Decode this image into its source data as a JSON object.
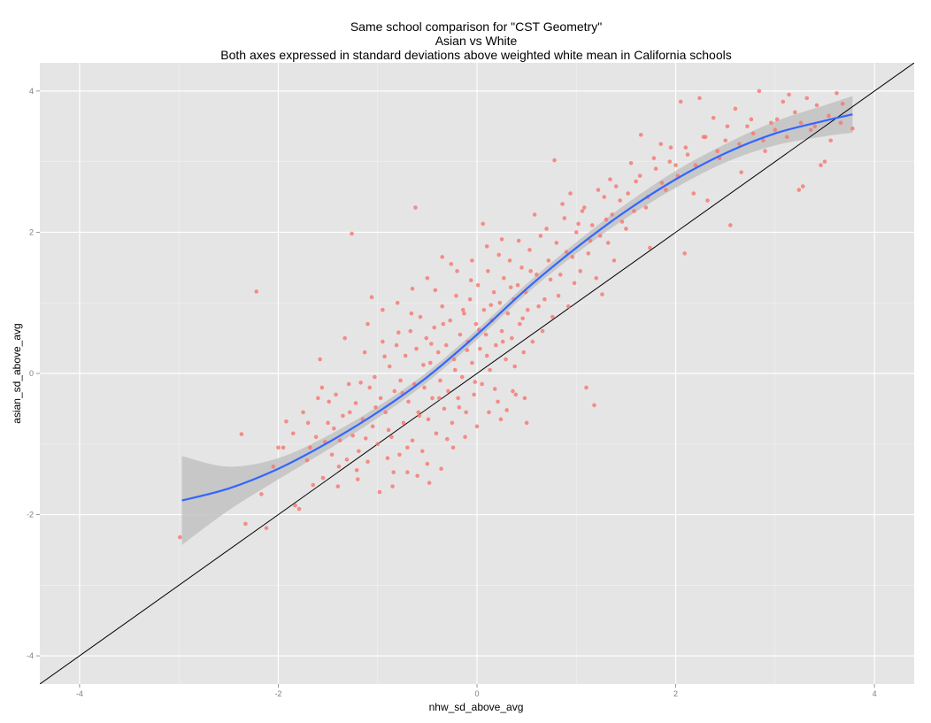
{
  "chart_data": {
    "type": "scatter",
    "title": "Same school comparison for \"CST Geometry\"",
    "subtitle": "Asian vs White",
    "subtitle2": "Both axes expressed in standard deviations above weighted white mean in California schools",
    "xlabel": "nhw_sd_above_avg",
    "ylabel": "asian_sd_above_avg",
    "xlim": [
      -4.4,
      4.4
    ],
    "ylim": [
      -4.4,
      4.4
    ],
    "x_ticks": [
      "-4",
      "-2",
      "0",
      "2",
      "4"
    ],
    "y_ticks": [
      "4",
      "2",
      "0",
      "-2",
      "-4"
    ],
    "grid": true,
    "background": "#e5e5e5",
    "point_color": "#f8766d",
    "smooth_color": "#3366ff",
    "ribbon_color": "#c2c2c2",
    "reference_line": {
      "slope": 1,
      "intercept": 0,
      "color": "#000000"
    },
    "smooth_curve": [
      [
        -2.97,
        -1.8
      ],
      [
        -2.5,
        -1.63
      ],
      [
        -2.0,
        -1.35
      ],
      [
        -1.5,
        -0.98
      ],
      [
        -1.0,
        -0.55
      ],
      [
        -0.5,
        -0.05
      ],
      [
        0.0,
        0.55
      ],
      [
        0.5,
        1.2
      ],
      [
        1.0,
        1.78
      ],
      [
        1.5,
        2.3
      ],
      [
        2.0,
        2.75
      ],
      [
        2.5,
        3.12
      ],
      [
        3.0,
        3.4
      ],
      [
        3.5,
        3.58
      ],
      [
        3.78,
        3.67
      ]
    ],
    "ribbon_upper": [
      [
        -2.97,
        -1.17
      ],
      [
        -2.5,
        -1.32
      ],
      [
        -2.0,
        -1.2
      ],
      [
        -1.5,
        -0.88
      ],
      [
        -1.0,
        -0.47
      ],
      [
        -0.5,
        0.02
      ],
      [
        0.0,
        0.62
      ],
      [
        0.5,
        1.27
      ],
      [
        1.0,
        1.86
      ],
      [
        1.5,
        2.4
      ],
      [
        2.0,
        2.87
      ],
      [
        2.5,
        3.25
      ],
      [
        3.0,
        3.57
      ],
      [
        3.5,
        3.8
      ],
      [
        3.78,
        3.93
      ]
    ],
    "ribbon_lower": [
      [
        -2.97,
        -2.43
      ],
      [
        -2.5,
        -1.94
      ],
      [
        -2.0,
        -1.5
      ],
      [
        -1.5,
        -1.08
      ],
      [
        -1.0,
        -0.63
      ],
      [
        -0.5,
        -0.12
      ],
      [
        0.0,
        0.48
      ],
      [
        0.5,
        1.13
      ],
      [
        1.0,
        1.7
      ],
      [
        1.5,
        2.2
      ],
      [
        2.0,
        2.63
      ],
      [
        2.5,
        2.99
      ],
      [
        3.0,
        3.23
      ],
      [
        3.5,
        3.36
      ],
      [
        3.78,
        3.41
      ]
    ],
    "points": [
      [
        -2.99,
        -2.32
      ],
      [
        -2.37,
        -0.86
      ],
      [
        -2.33,
        -2.13
      ],
      [
        -2.22,
        1.16
      ],
      [
        -2.17,
        -1.71
      ],
      [
        -2.12,
        -2.19
      ],
      [
        -2.0,
        -1.05
      ],
      [
        -1.92,
        -0.68
      ],
      [
        -1.83,
        -1.87
      ],
      [
        -1.79,
        -1.92
      ],
      [
        -1.71,
        -1.23
      ],
      [
        -1.65,
        -1.58
      ],
      [
        -1.58,
        0.2
      ],
      [
        -1.53,
        -0.97
      ],
      [
        -1.49,
        -0.4
      ],
      [
        -1.44,
        -0.78
      ],
      [
        -1.39,
        -1.32
      ],
      [
        -1.33,
        0.5
      ],
      [
        -1.28,
        -0.55
      ],
      [
        -1.26,
        1.98
      ],
      [
        -1.21,
        -1.37
      ],
      [
        -1.17,
        -0.13
      ],
      [
        -1.12,
        -0.92
      ],
      [
        -1.06,
        1.08
      ],
      [
        -1.02,
        -0.48
      ],
      [
        -0.98,
        -1.68
      ],
      [
        -0.93,
        0.24
      ],
      [
        -0.89,
        -0.8
      ],
      [
        -0.84,
        -1.4
      ],
      [
        -0.79,
        0.58
      ],
      [
        -0.75,
        -0.28
      ],
      [
        -0.7,
        -1.05
      ],
      [
        -0.66,
        0.85
      ],
      [
        -0.62,
        2.35
      ],
      [
        -0.58,
        -0.6
      ],
      [
        -0.54,
        0.12
      ],
      [
        -0.5,
        -1.28
      ],
      [
        -0.46,
        0.42
      ],
      [
        -0.42,
        1.18
      ],
      [
        -0.38,
        -0.35
      ],
      [
        -0.34,
        0.7
      ],
      [
        -0.3,
        -0.93
      ],
      [
        -0.26,
        1.55
      ],
      [
        -0.22,
        0.05
      ],
      [
        -0.18,
        -0.48
      ],
      [
        -0.14,
        0.9
      ],
      [
        -0.1,
        0.33
      ],
      [
        -0.06,
        1.32
      ],
      [
        -0.02,
        -0.12
      ],
      [
        0.02,
        0.62
      ],
      [
        0.06,
        2.12
      ],
      [
        0.1,
        0.25
      ],
      [
        0.14,
        0.97
      ],
      [
        0.18,
        -0.22
      ],
      [
        0.22,
        1.68
      ],
      [
        0.26,
        0.45
      ],
      [
        0.3,
        -0.52
      ],
      [
        0.34,
        1.22
      ],
      [
        0.38,
        0.1
      ],
      [
        0.42,
        1.88
      ],
      [
        0.46,
        0.78
      ],
      [
        0.5,
        -0.7
      ],
      [
        0.54,
        1.45
      ],
      [
        0.58,
        2.25
      ],
      [
        0.62,
        0.95
      ],
      [
        0.66,
        0.6
      ],
      [
        0.7,
        2.05
      ],
      [
        0.74,
        1.33
      ],
      [
        0.78,
        3.02
      ],
      [
        0.82,
        1.1
      ],
      [
        0.86,
        2.4
      ],
      [
        0.9,
        1.72
      ],
      [
        0.94,
        2.55
      ],
      [
        0.98,
        1.28
      ],
      [
        1.02,
        2.12
      ],
      [
        1.06,
        2.3
      ],
      [
        1.1,
        -0.2
      ],
      [
        1.14,
        1.88
      ],
      [
        1.18,
        -0.45
      ],
      [
        1.22,
        2.6
      ],
      [
        1.26,
        1.12
      ],
      [
        1.3,
        2.18
      ],
      [
        1.34,
        2.75
      ],
      [
        1.38,
        1.6
      ],
      [
        1.44,
        2.45
      ],
      [
        1.5,
        2.05
      ],
      [
        1.55,
        2.98
      ],
      [
        1.6,
        2.72
      ],
      [
        1.65,
        3.38
      ],
      [
        1.7,
        2.35
      ],
      [
        1.74,
        1.78
      ],
      [
        1.8,
        2.9
      ],
      [
        1.85,
        3.25
      ],
      [
        1.9,
        2.6
      ],
      [
        1.95,
        3.2
      ],
      [
        2.0,
        2.95
      ],
      [
        2.05,
        3.85
      ],
      [
        2.09,
        1.7
      ],
      [
        2.12,
        3.1
      ],
      [
        2.18,
        2.55
      ],
      [
        2.24,
        3.9
      ],
      [
        2.28,
        3.35
      ],
      [
        2.32,
        2.45
      ],
      [
        2.38,
        3.62
      ],
      [
        2.44,
        3.05
      ],
      [
        2.5,
        3.3
      ],
      [
        2.55,
        2.1
      ],
      [
        2.6,
        3.75
      ],
      [
        2.66,
        2.85
      ],
      [
        2.72,
        3.5
      ],
      [
        2.78,
        3.4
      ],
      [
        2.84,
        4.0
      ],
      [
        2.9,
        3.15
      ],
      [
        2.96,
        3.55
      ],
      [
        3.02,
        3.6
      ],
      [
        3.08,
        3.85
      ],
      [
        3.14,
        3.95
      ],
      [
        3.2,
        3.7
      ],
      [
        3.24,
        2.6
      ],
      [
        3.28,
        2.65
      ],
      [
        3.32,
        3.9
      ],
      [
        3.36,
        3.45
      ],
      [
        3.42,
        3.8
      ],
      [
        3.46,
        2.95
      ],
      [
        3.5,
        3.0
      ],
      [
        3.56,
        3.3
      ],
      [
        3.62,
        3.97
      ],
      [
        3.68,
        3.82
      ],
      [
        3.78,
        3.47
      ],
      [
        -1.75,
        -0.55
      ],
      [
        -1.68,
        -1.05
      ],
      [
        -1.6,
        -0.35
      ],
      [
        -1.55,
        -1.48
      ],
      [
        -1.5,
        -0.7
      ],
      [
        -1.46,
        -1.15
      ],
      [
        -1.42,
        -0.3
      ],
      [
        -1.38,
        -0.95
      ],
      [
        -1.35,
        -0.6
      ],
      [
        -1.31,
        -1.22
      ],
      [
        -1.29,
        -0.15
      ],
      [
        -1.25,
        -0.88
      ],
      [
        -1.22,
        -0.42
      ],
      [
        -1.19,
        -1.1
      ],
      [
        -1.15,
        -0.65
      ],
      [
        -1.13,
        0.3
      ],
      [
        -1.1,
        -1.25
      ],
      [
        -1.08,
        -0.2
      ],
      [
        -1.05,
        -0.75
      ],
      [
        -1.03,
        -0.05
      ],
      [
        -1.0,
        -1.0
      ],
      [
        -0.97,
        -0.35
      ],
      [
        -0.95,
        0.45
      ],
      [
        -0.92,
        -0.55
      ],
      [
        -0.9,
        -1.2
      ],
      [
        -0.88,
        0.1
      ],
      [
        -0.86,
        -0.9
      ],
      [
        -0.83,
        -0.25
      ],
      [
        -0.81,
        0.4
      ],
      [
        -0.78,
        -1.15
      ],
      [
        -0.77,
        -0.1
      ],
      [
        -0.74,
        -0.7
      ],
      [
        -0.72,
        0.25
      ],
      [
        -0.69,
        -0.4
      ],
      [
        -0.67,
        0.6
      ],
      [
        -0.65,
        -0.95
      ],
      [
        -0.63,
        -0.15
      ],
      [
        -0.61,
        0.35
      ],
      [
        -0.59,
        -0.55
      ],
      [
        -0.57,
        0.8
      ],
      [
        -0.55,
        -1.1
      ],
      [
        -0.53,
        -0.2
      ],
      [
        -0.51,
        0.5
      ],
      [
        -0.49,
        -0.65
      ],
      [
        -0.47,
        0.15
      ],
      [
        -0.45,
        -0.35
      ],
      [
        -0.43,
        0.65
      ],
      [
        -0.41,
        -0.85
      ],
      [
        -0.39,
        0.3
      ],
      [
        -0.37,
        -0.1
      ],
      [
        -0.35,
        0.95
      ],
      [
        -0.33,
        -0.5
      ],
      [
        -0.31,
        0.4
      ],
      [
        -0.29,
        -0.25
      ],
      [
        -0.27,
        0.75
      ],
      [
        -0.25,
        -0.7
      ],
      [
        -0.23,
        0.2
      ],
      [
        -0.21,
        1.1
      ],
      [
        -0.19,
        -0.35
      ],
      [
        -0.17,
        0.55
      ],
      [
        -0.15,
        -0.05
      ],
      [
        -0.13,
        0.85
      ],
      [
        -0.11,
        -0.55
      ],
      [
        -0.09,
        0.45
      ],
      [
        -0.07,
        1.05
      ],
      [
        -0.05,
        0.15
      ],
      [
        -0.03,
        -0.3
      ],
      [
        -0.01,
        0.7
      ],
      [
        0.01,
        1.25
      ],
      [
        0.03,
        0.35
      ],
      [
        0.05,
        -0.15
      ],
      [
        0.07,
        0.9
      ],
      [
        0.09,
        0.55
      ],
      [
        0.11,
        1.45
      ],
      [
        0.13,
        0.05
      ],
      [
        0.15,
        0.75
      ],
      [
        0.17,
        1.15
      ],
      [
        0.19,
        0.4
      ],
      [
        0.21,
        -0.4
      ],
      [
        0.23,
        1.0
      ],
      [
        0.25,
        0.6
      ],
      [
        0.27,
        1.35
      ],
      [
        0.29,
        0.2
      ],
      [
        0.31,
        0.85
      ],
      [
        0.33,
        1.6
      ],
      [
        0.35,
        0.5
      ],
      [
        0.37,
        1.05
      ],
      [
        0.39,
        -0.3
      ],
      [
        0.41,
        1.25
      ],
      [
        0.43,
        0.7
      ],
      [
        0.45,
        1.5
      ],
      [
        0.47,
        0.3
      ],
      [
        0.49,
        1.15
      ],
      [
        0.51,
        0.9
      ],
      [
        0.53,
        1.75
      ],
      [
        0.56,
        0.45
      ],
      [
        0.6,
        1.4
      ],
      [
        0.64,
        1.95
      ],
      [
        0.68,
        1.05
      ],
      [
        0.72,
        1.6
      ],
      [
        0.76,
        0.8
      ],
      [
        0.8,
        1.85
      ],
      [
        0.84,
        1.4
      ],
      [
        0.88,
        2.2
      ],
      [
        0.92,
        0.95
      ],
      [
        0.96,
        1.65
      ],
      [
        1.0,
        2.0
      ],
      [
        1.04,
        1.45
      ],
      [
        1.08,
        2.35
      ],
      [
        1.12,
        1.7
      ],
      [
        1.16,
        2.1
      ],
      [
        1.2,
        1.35
      ],
      [
        1.24,
        1.95
      ],
      [
        1.28,
        2.5
      ],
      [
        1.32,
        1.85
      ],
      [
        1.36,
        2.25
      ],
      [
        1.4,
        2.65
      ],
      [
        1.46,
        2.15
      ],
      [
        1.52,
        2.55
      ],
      [
        1.58,
        2.3
      ],
      [
        1.64,
        2.8
      ],
      [
        1.72,
        2.5
      ],
      [
        1.78,
        3.05
      ],
      [
        1.86,
        2.7
      ],
      [
        1.94,
        3.0
      ],
      [
        2.02,
        2.8
      ],
      [
        2.1,
        3.2
      ],
      [
        2.2,
        2.95
      ],
      [
        2.3,
        3.35
      ],
      [
        2.42,
        3.15
      ],
      [
        2.52,
        3.5
      ],
      [
        2.64,
        3.25
      ],
      [
        2.76,
        3.6
      ],
      [
        2.88,
        3.3
      ],
      [
        3.0,
        3.45
      ],
      [
        3.12,
        3.35
      ],
      [
        3.26,
        3.55
      ],
      [
        3.4,
        3.5
      ],
      [
        3.54,
        3.65
      ],
      [
        3.66,
        3.55
      ],
      [
        -0.6,
        -1.45
      ],
      [
        -0.48,
        -1.55
      ],
      [
        -0.36,
        -1.35
      ],
      [
        -0.24,
        -1.05
      ],
      [
        -0.12,
        -0.9
      ],
      [
        0.0,
        -0.75
      ],
      [
        0.12,
        -0.55
      ],
      [
        0.24,
        -0.65
      ],
      [
        0.36,
        -0.25
      ],
      [
        0.48,
        -0.35
      ],
      [
        -1.1,
        0.7
      ],
      [
        -0.95,
        0.9
      ],
      [
        -0.8,
        1.0
      ],
      [
        -0.65,
        1.2
      ],
      [
        -0.5,
        1.35
      ],
      [
        -0.35,
        1.65
      ],
      [
        -0.2,
        1.45
      ],
      [
        -0.05,
        1.6
      ],
      [
        0.1,
        1.8
      ],
      [
        0.25,
        1.9
      ],
      [
        -1.4,
        -1.6
      ],
      [
        -1.2,
        -1.5
      ],
      [
        -0.85,
        -1.6
      ],
      [
        -0.7,
        -1.4
      ],
      [
        -2.05,
        -1.32
      ],
      [
        -1.95,
        -1.05
      ],
      [
        -1.85,
        -0.85
      ],
      [
        -1.7,
        -0.7
      ],
      [
        -1.62,
        -0.9
      ],
      [
        -1.56,
        -0.2
      ]
    ]
  }
}
